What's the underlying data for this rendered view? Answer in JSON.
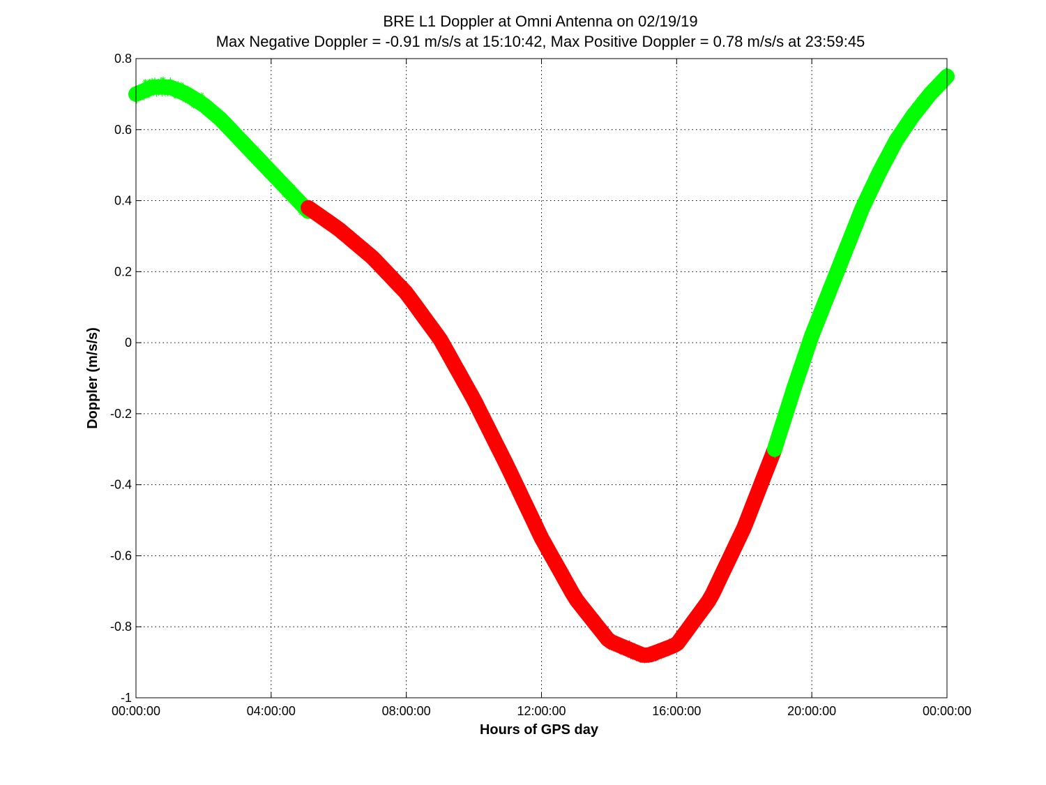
{
  "chart_data": {
    "type": "line",
    "title": "BRE  L1 Doppler at Omni Antenna on 02/19/19",
    "subtitle": "Max Negative Doppler = -0.91 m/s/s  at 15:10:42,   Max Positive Doppler = 0.78 m/s/s  at 23:59:45",
    "xlabel": "Hours of GPS day",
    "ylabel": "Doppler (m/s/s)",
    "xlim": [
      0,
      24
    ],
    "ylim": [
      -1,
      0.8
    ],
    "x_unit": "hours",
    "grid": true,
    "x_ticks": [
      {
        "value": 0,
        "label": "00:00:00"
      },
      {
        "value": 4,
        "label": "04:00:00"
      },
      {
        "value": 8,
        "label": "08:00:00"
      },
      {
        "value": 12,
        "label": "12:00:00"
      },
      {
        "value": 16,
        "label": "16:00:00"
      },
      {
        "value": 20,
        "label": "20:00:00"
      },
      {
        "value": 24,
        "label": "00:00:00"
      }
    ],
    "y_ticks": [
      {
        "value": 0.8,
        "label": "0.8"
      },
      {
        "value": 0.6,
        "label": "0.6"
      },
      {
        "value": 0.4,
        "label": "0.4"
      },
      {
        "value": 0.2,
        "label": "0.2"
      },
      {
        "value": 0,
        "label": "0"
      },
      {
        "value": -0.2,
        "label": "-0.2"
      },
      {
        "value": -0.4,
        "label": "-0.4"
      },
      {
        "value": -0.6,
        "label": "-0.6"
      },
      {
        "value": -0.8,
        "label": "-0.8"
      },
      {
        "value": -1,
        "label": "-1"
      }
    ],
    "series": [
      {
        "color": "#00ff00",
        "marker": "asterisk",
        "x": [
          0,
          0.5,
          1,
          1.5,
          2,
          2.5,
          3,
          3.5,
          4,
          4.5,
          5.1
        ],
        "y": [
          0.7,
          0.72,
          0.72,
          0.7,
          0.67,
          0.63,
          0.58,
          0.53,
          0.48,
          0.43,
          0.37
        ]
      },
      {
        "color": "#ff0000",
        "marker": "line",
        "x": [
          5.1,
          6,
          7,
          8,
          9,
          10,
          11,
          12,
          13,
          14,
          15,
          15.18,
          16,
          17,
          18,
          18.9
        ],
        "y": [
          0.38,
          0.32,
          0.24,
          0.14,
          0.01,
          -0.16,
          -0.35,
          -0.55,
          -0.72,
          -0.84,
          -0.88,
          -0.88,
          -0.85,
          -0.72,
          -0.52,
          -0.3
        ]
      },
      {
        "color": "#00ff00",
        "marker": "asterisk",
        "x": [
          18.9,
          19.5,
          20,
          20.5,
          21,
          21.5,
          22,
          22.5,
          23,
          23.5,
          24
        ],
        "y": [
          -0.3,
          -0.12,
          0.02,
          0.14,
          0.26,
          0.38,
          0.48,
          0.57,
          0.64,
          0.7,
          0.75
        ]
      }
    ]
  }
}
